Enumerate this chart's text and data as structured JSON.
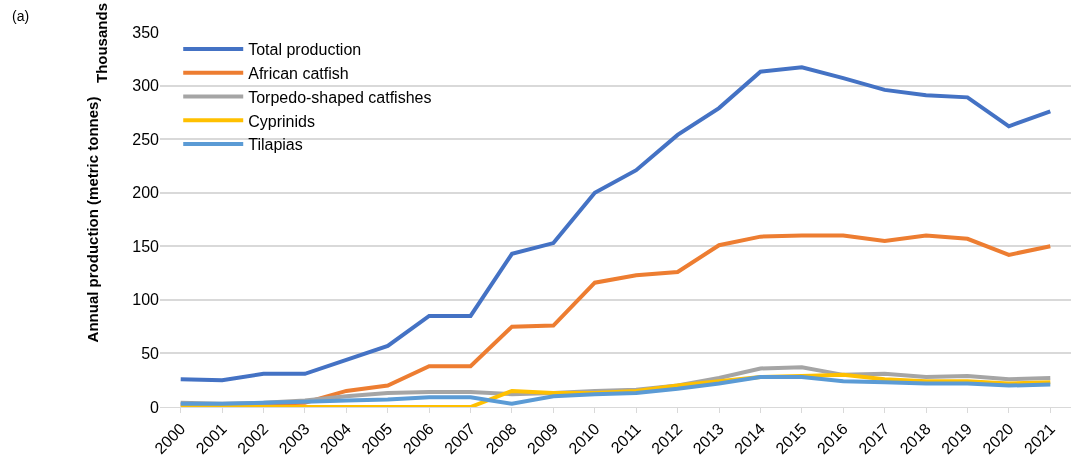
{
  "chart_data": {
    "type": "line",
    "ylabel": "Annual production (metric tonnes)",
    "annotations": [
      "(a)",
      "Thousands"
    ],
    "categories": [
      "2000",
      "2001",
      "2002",
      "2003",
      "2004",
      "2005",
      "2006",
      "2007",
      "2008",
      "2009",
      "2010",
      "2011",
      "2012",
      "2013",
      "2014",
      "2015",
      "2016",
      "2017",
      "2018",
      "2019",
      "2020",
      "2021"
    ],
    "series": [
      {
        "name": "Total production",
        "color": "#4472c4",
        "values": [
          26,
          25,
          31,
          31,
          44,
          57,
          85,
          85,
          143,
          153,
          200,
          221,
          254,
          279,
          313,
          317,
          307,
          296,
          291,
          289,
          262,
          276
        ]
      },
      {
        "name": "African catfish",
        "color": "#ed7d31",
        "values": [
          2,
          2,
          3,
          4,
          15,
          20,
          38,
          38,
          75,
          76,
          116,
          123,
          126,
          151,
          159,
          160,
          160,
          155,
          160,
          157,
          142,
          150
        ]
      },
      {
        "name": "Torpedo-shaped catfishes",
        "color": "#a5a5a5",
        "values": [
          4,
          3,
          4,
          6,
          10,
          13,
          14,
          14,
          12,
          13,
          15,
          16,
          20,
          27,
          36,
          37,
          30,
          31,
          28,
          29,
          26,
          27
        ]
      },
      {
        "name": "Cyprinids",
        "color": "#ffc000",
        "values": [
          0,
          0,
          0,
          0,
          0,
          0,
          0,
          0,
          15,
          13,
          13,
          15,
          20,
          24,
          28,
          29,
          30,
          26,
          24,
          24,
          22,
          23
        ]
      },
      {
        "name": "Tilapias",
        "color": "#5b9bd5",
        "values": [
          3,
          3,
          4,
          5,
          6,
          7,
          9,
          9,
          3,
          10,
          12,
          13,
          17,
          22,
          28,
          28,
          24,
          23,
          22,
          22,
          20,
          21
        ]
      }
    ],
    "ylim": [
      0,
      350
    ],
    "yticks": [
      0,
      50,
      100,
      150,
      200,
      250,
      300,
      350
    ],
    "grid": "y",
    "legend": "top left",
    "marker": "none",
    "line_style": "solid"
  }
}
